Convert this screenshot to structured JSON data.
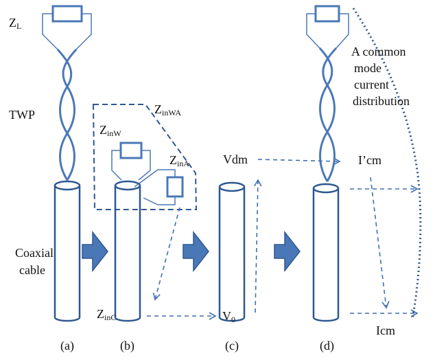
{
  "colors": {
    "stroke": "#4a78b6",
    "arrow_fill": "#4a78b6",
    "arrow_stroke": "#2d5790",
    "dash": "#3f6fae",
    "dotted": "#2f5690",
    "text": "#111111"
  },
  "labels": {
    "zl": {
      "main": "Z",
      "sub": "L"
    },
    "twp": "TWP",
    "coaxial_line1": "Coaxial",
    "coaxial_line2": "cable",
    "zinwa": {
      "main": "Z",
      "sub": "inWA"
    },
    "zinw": {
      "main": "Z",
      "sub": "inW"
    },
    "zina": {
      "main": "Z",
      "sub": "inA"
    },
    "zinc": {
      "main": "Z",
      "sub": "inC"
    },
    "vdm": "Vdm",
    "v0": {
      "main": "V",
      "sub": "0"
    },
    "icm_prime": "I’cm",
    "icm": "Icm",
    "common_mode_1": "A common",
    "common_mode_2": "mode",
    "common_mode_3": "current",
    "common_mode_4": "distribution",
    "panel_a": "(a)",
    "panel_b": "(b)",
    "panel_c": "(c)",
    "panel_d": "(d)"
  }
}
